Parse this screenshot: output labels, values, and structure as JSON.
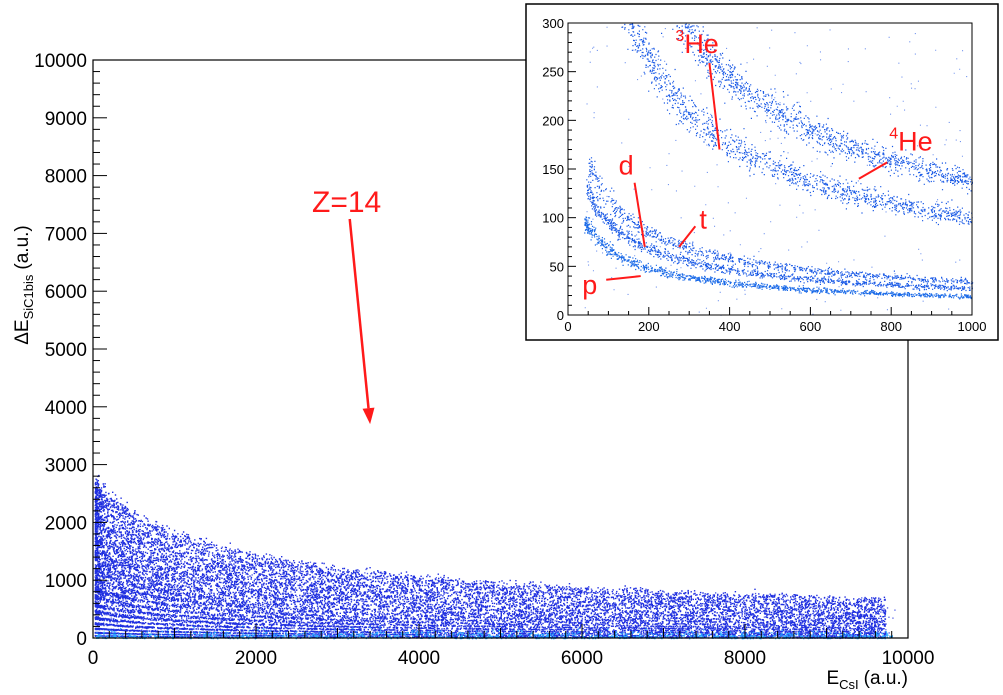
{
  "chart_data": [
    {
      "type": "scatter",
      "title": "",
      "xlabel": {
        "main": "E",
        "sub": "CsI",
        "units": "(a.u.)"
      },
      "ylabel": {
        "main": "ΔE",
        "sub": "SiC1bis",
        "units": "(a.u.)"
      },
      "xlim": [
        0,
        10000
      ],
      "ylim": [
        0,
        10000
      ],
      "xticks": [
        0,
        2000,
        4000,
        6000,
        8000,
        10000
      ],
      "yticks": [
        0,
        1000,
        2000,
        3000,
        4000,
        5000,
        6000,
        7000,
        8000,
        9000,
        10000
      ],
      "grid": false,
      "marker_color": "#1f2fe0",
      "bands": [
        {
          "k": 45
        },
        {
          "k": 95
        },
        {
          "k": 160
        },
        {
          "k": 240
        },
        {
          "k": 330
        },
        {
          "k": 430
        },
        {
          "k": 540
        },
        {
          "k": 660
        },
        {
          "k": 790
        },
        {
          "k": 930
        },
        {
          "k": 1080
        },
        {
          "k": 1240
        },
        {
          "k": 1410
        },
        {
          "k": 1590
        },
        {
          "k": 1780
        },
        {
          "k": 1980
        },
        {
          "k": 2190
        },
        {
          "k": 2410
        }
      ],
      "band_model": "dE = k / (E + 1000)^0.58 * 60",
      "annotations": [
        {
          "text": "Z=14",
          "color": "#ff1a1a",
          "arrow_to": {
            "x": 3400,
            "y": 3700
          },
          "arrow_from": {
            "x": 3150,
            "y": 7250
          }
        }
      ]
    },
    {
      "type": "scatter",
      "inset": true,
      "title": "",
      "xlim": [
        0,
        1000
      ],
      "ylim": [
        0,
        300
      ],
      "xticks": [
        0,
        200,
        400,
        600,
        800,
        1000
      ],
      "yticks": [
        0,
        50,
        100,
        150,
        200,
        250,
        300
      ],
      "marker_color": "#1a5ae6",
      "series": [
        {
          "name": "p",
          "label_pos": {
            "x": 55,
            "y": 30
          },
          "arrow_to": {
            "x": 180,
            "y": 40
          }
        },
        {
          "name": "d",
          "label_pos": {
            "x": 145,
            "y": 140
          },
          "arrow_to": {
            "x": 190,
            "y": 70
          }
        },
        {
          "name": "t",
          "label_pos": {
            "x": 330,
            "y": 85
          },
          "arrow_to": {
            "x": 275,
            "y": 70
          }
        },
        {
          "name": "He",
          "mass": "3",
          "label_pos": {
            "x": 355,
            "y": 265
          },
          "arrow_to": {
            "x": 375,
            "y": 170
          }
        },
        {
          "name": "He",
          "mass": "4",
          "label_pos": {
            "x": 800,
            "y": 165
          },
          "arrow_to": {
            "x": 720,
            "y": 140
          }
        }
      ]
    }
  ]
}
